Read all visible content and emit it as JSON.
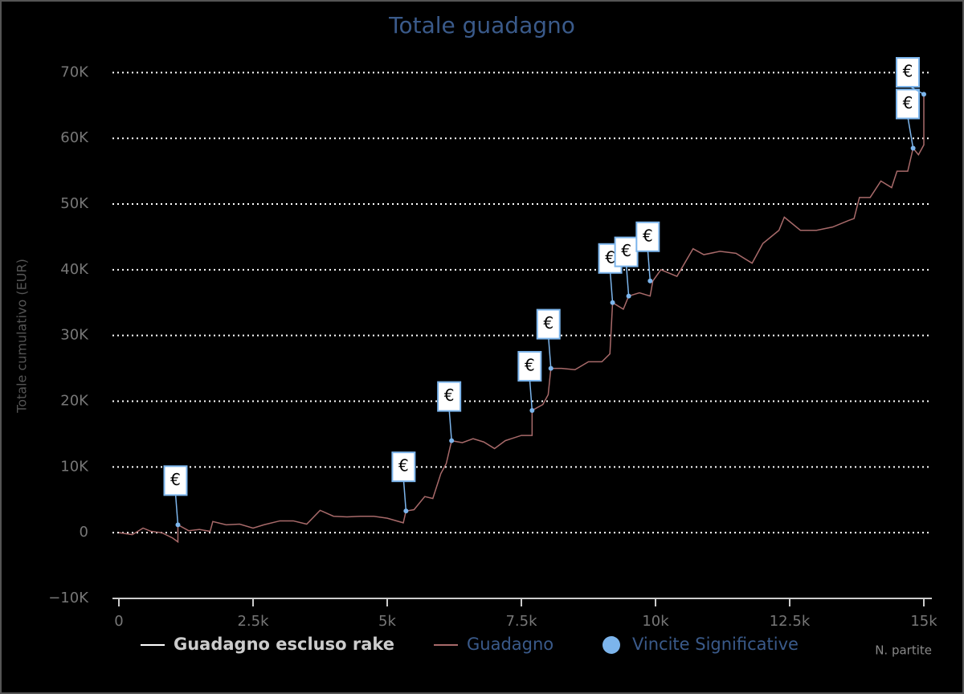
{
  "chart_data": {
    "type": "line",
    "title": "Totale guadagno",
    "y_axis_label": "Totale cumulativo (EUR)",
    "x_axis_label": "N. partite",
    "x": [
      0,
      250,
      450,
      600,
      800,
      1000,
      1100,
      1100,
      1300,
      1500,
      1700,
      1750,
      2000,
      2250,
      2500,
      2700,
      3000,
      3250,
      3500,
      3750,
      4000,
      4250,
      4500,
      4750,
      5000,
      5300,
      5350,
      5500,
      5700,
      5850,
      6000,
      6100,
      6200,
      6400,
      6600,
      6800,
      7000,
      7200,
      7500,
      7700,
      7700,
      7900,
      8000,
      8050,
      8250,
      8500,
      8750,
      9000,
      9150,
      9200,
      9400,
      9500,
      9700,
      9900,
      9950,
      10100,
      10400,
      10700,
      10900,
      11200,
      11500,
      11800,
      12000,
      12300,
      12400,
      12700,
      13000,
      13300,
      13600,
      13700,
      13800,
      14000,
      14200,
      14400,
      14500,
      14700,
      14800,
      14900,
      15000,
      15000
    ],
    "series": [
      {
        "name": "Guadagno escluso rake",
        "color": "#ffffff",
        "values": [
          null,
          null,
          null,
          null,
          null,
          null,
          null,
          null,
          null,
          null,
          null,
          null,
          null,
          null,
          null,
          null,
          null,
          null,
          null,
          null,
          null,
          null,
          null,
          null,
          null,
          null,
          null,
          null,
          null,
          null,
          null,
          null,
          null,
          null,
          null,
          null,
          null,
          null,
          null,
          null,
          null,
          null,
          null,
          null,
          null,
          null,
          null,
          null,
          null,
          null,
          null,
          null,
          null,
          null,
          null,
          null,
          null,
          null,
          null,
          null,
          null,
          null,
          null,
          null,
          null,
          null,
          null,
          null,
          null,
          null,
          null,
          null,
          null,
          null,
          null,
          null,
          null,
          null,
          null,
          null
        ]
      },
      {
        "name": "Guadagno",
        "color": "#a86a6a",
        "values": [
          0,
          -300,
          700,
          200,
          0,
          -800,
          -1400,
          1200,
          300,
          500,
          200,
          1700,
          1200,
          1300,
          700,
          1200,
          1800,
          1800,
          1300,
          3400,
          2500,
          2400,
          2500,
          2500,
          2200,
          1500,
          3300,
          3500,
          5500,
          5200,
          9000,
          10500,
          14000,
          13700,
          14300,
          13800,
          12800,
          14000,
          14800,
          14800,
          18600,
          19500,
          21000,
          25000,
          25000,
          24800,
          26000,
          26000,
          27200,
          35000,
          34000,
          36000,
          36500,
          36000,
          38300,
          40000,
          39000,
          43200,
          42300,
          42800,
          42500,
          41000,
          44000,
          46000,
          48000,
          46000,
          46000,
          46500,
          47500,
          47800,
          51000,
          51000,
          53500,
          52500,
          55000,
          55000,
          58500,
          57500,
          59000,
          66700
        ]
      }
    ],
    "markers": {
      "name": "Vincite Significative",
      "color": "#7cb5ec",
      "x": [
        1100,
        5350,
        6200,
        7700,
        8050,
        9200,
        9500,
        9900,
        14800,
        15000
      ],
      "values": [
        1200,
        3300,
        14000,
        18600,
        25000,
        35000,
        36000,
        38300,
        58500,
        66700
      ],
      "labels": [
        "€",
        "€",
        "€",
        "€",
        "€",
        "€",
        "€",
        "€",
        "€",
        "€"
      ]
    },
    "xlim": [
      0,
      15000
    ],
    "xticks": [
      0,
      {
        "value": 2500,
        "label": "2.5k"
      },
      {
        "value": 5000,
        "label": "5k"
      },
      {
        "value": 7500,
        "label": "7.5k"
      },
      {
        "value": 10000,
        "label": "10k"
      },
      {
        "value": 12500,
        "label": "12.5k"
      },
      {
        "value": 15000,
        "label": "15k"
      }
    ],
    "ylim": [
      -10000,
      72000
    ],
    "yticks": [
      {
        "value": -10000,
        "label": "−10K"
      },
      0,
      {
        "value": 10000,
        "label": "10K"
      },
      {
        "value": 20000,
        "label": "20K"
      },
      {
        "value": 30000,
        "label": "30K"
      },
      {
        "value": 40000,
        "label": "40K"
      },
      {
        "value": 50000,
        "label": "50K"
      },
      {
        "value": 60000,
        "label": "60K"
      },
      {
        "value": 70000,
        "label": "70K"
      }
    ],
    "grid": true
  }
}
